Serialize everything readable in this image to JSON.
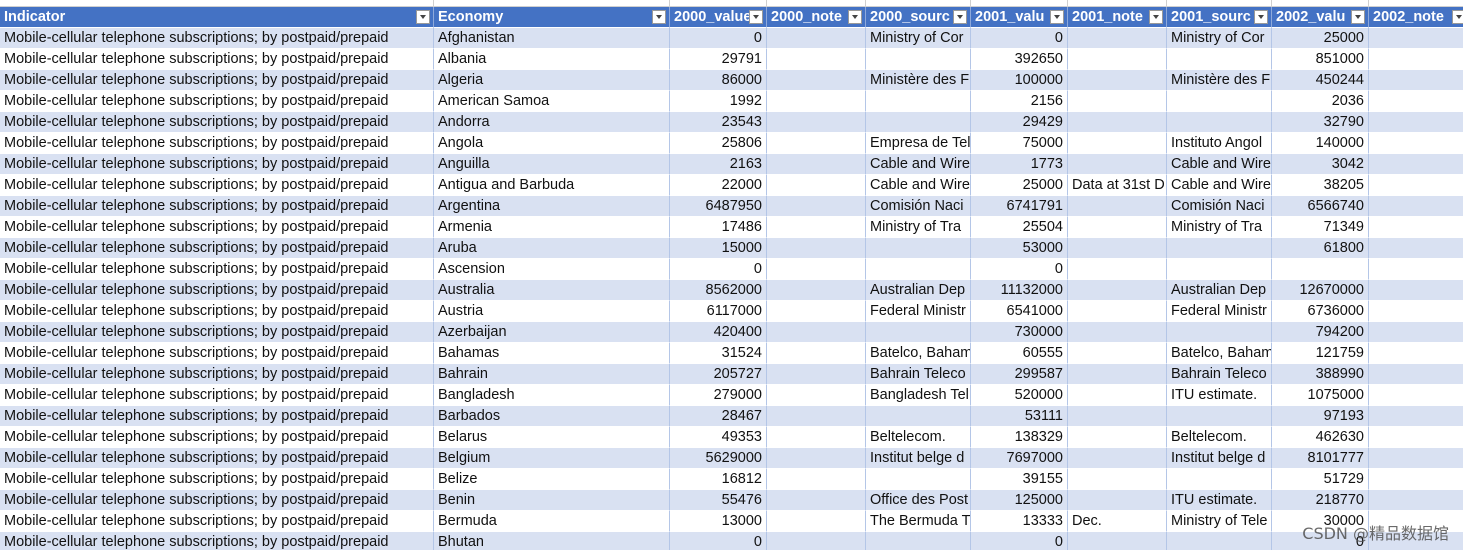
{
  "table": {
    "columns": [
      "Indicator",
      "Economy",
      "2000_value",
      "2000_note",
      "2000_sourc",
      "2001_valu",
      "2001_note",
      "2001_sourc",
      "2002_valu",
      "2002_note"
    ],
    "rows": [
      [
        "Mobile-cellular telephone subscriptions;  by postpaid/prepaid",
        "Afghanistan",
        0,
        null,
        "Ministry of Cor",
        0,
        null,
        "Ministry of Cor",
        25000,
        null
      ],
      [
        "Mobile-cellular telephone subscriptions;  by postpaid/prepaid",
        "Albania",
        29791,
        null,
        null,
        392650,
        null,
        null,
        851000,
        null
      ],
      [
        "Mobile-cellular telephone subscriptions;  by postpaid/prepaid",
        "Algeria",
        86000,
        null,
        "Ministère des F",
        100000,
        null,
        "Ministère des F",
        450244,
        null
      ],
      [
        "Mobile-cellular telephone subscriptions;  by postpaid/prepaid",
        "American Samoa",
        1992,
        null,
        null,
        2156,
        null,
        null,
        2036,
        null
      ],
      [
        "Mobile-cellular telephone subscriptions;  by postpaid/prepaid",
        "Andorra",
        23543,
        null,
        null,
        29429,
        null,
        null,
        32790,
        null
      ],
      [
        "Mobile-cellular telephone subscriptions;  by postpaid/prepaid",
        "Angola",
        25806,
        null,
        "Empresa de Tel",
        75000,
        null,
        "Instituto Angol",
        140000,
        null
      ],
      [
        "Mobile-cellular telephone subscriptions;  by postpaid/prepaid",
        "Anguilla",
        2163,
        null,
        "Cable and Wire",
        1773,
        null,
        "Cable and Wire",
        3042,
        null
      ],
      [
        "Mobile-cellular telephone subscriptions;  by postpaid/prepaid",
        "Antigua and Barbuda",
        22000,
        null,
        "Cable and Wire",
        25000,
        "Data at 31st D",
        "Cable and Wire",
        38205,
        null
      ],
      [
        "Mobile-cellular telephone subscriptions;  by postpaid/prepaid",
        "Argentina",
        6487950,
        null,
        "Comisión Naci",
        6741791,
        null,
        "Comisión Naci",
        6566740,
        null
      ],
      [
        "Mobile-cellular telephone subscriptions;  by postpaid/prepaid",
        "Armenia",
        17486,
        null,
        "Ministry of Tra",
        25504,
        null,
        "Ministry of Tra",
        71349,
        null
      ],
      [
        "Mobile-cellular telephone subscriptions;  by postpaid/prepaid",
        "Aruba",
        15000,
        null,
        null,
        53000,
        null,
        null,
        61800,
        null
      ],
      [
        "Mobile-cellular telephone subscriptions;  by postpaid/prepaid",
        "Ascension",
        0,
        null,
        null,
        0,
        null,
        null,
        null,
        null
      ],
      [
        "Mobile-cellular telephone subscriptions;  by postpaid/prepaid",
        "Australia",
        8562000,
        null,
        "Australian Dep",
        11132000,
        null,
        "Australian Dep",
        12670000,
        null
      ],
      [
        "Mobile-cellular telephone subscriptions;  by postpaid/prepaid",
        "Austria",
        6117000,
        null,
        "Federal Ministr",
        6541000,
        null,
        "Federal Ministr",
        6736000,
        null
      ],
      [
        "Mobile-cellular telephone subscriptions;  by postpaid/prepaid",
        "Azerbaijan",
        420400,
        null,
        null,
        730000,
        null,
        null,
        794200,
        null
      ],
      [
        "Mobile-cellular telephone subscriptions;  by postpaid/prepaid",
        "Bahamas",
        31524,
        null,
        "Batelco, Baham",
        60555,
        null,
        "Batelco, Baham",
        121759,
        null
      ],
      [
        "Mobile-cellular telephone subscriptions;  by postpaid/prepaid",
        "Bahrain",
        205727,
        null,
        "Bahrain Teleco",
        299587,
        null,
        "Bahrain Teleco",
        388990,
        null
      ],
      [
        "Mobile-cellular telephone subscriptions;  by postpaid/prepaid",
        "Bangladesh",
        279000,
        null,
        "Bangladesh Tel",
        520000,
        null,
        "ITU estimate.",
        1075000,
        null
      ],
      [
        "Mobile-cellular telephone subscriptions;  by postpaid/prepaid",
        "Barbados",
        28467,
        null,
        null,
        53111,
        null,
        null,
        97193,
        null
      ],
      [
        "Mobile-cellular telephone subscriptions;  by postpaid/prepaid",
        "Belarus",
        49353,
        null,
        "Beltelecom.",
        138329,
        null,
        "Beltelecom.",
        462630,
        null
      ],
      [
        "Mobile-cellular telephone subscriptions;  by postpaid/prepaid",
        "Belgium",
        5629000,
        null,
        "Institut belge d",
        7697000,
        null,
        "Institut belge d",
        8101777,
        null
      ],
      [
        "Mobile-cellular telephone subscriptions;  by postpaid/prepaid",
        "Belize",
        16812,
        null,
        null,
        39155,
        null,
        null,
        51729,
        null
      ],
      [
        "Mobile-cellular telephone subscriptions;  by postpaid/prepaid",
        "Benin",
        55476,
        null,
        "Office des Post",
        125000,
        null,
        "ITU estimate.",
        218770,
        null
      ],
      [
        "Mobile-cellular telephone subscriptions;  by postpaid/prepaid",
        "Bermuda",
        13000,
        null,
        "The Bermuda T",
        13333,
        "Dec.",
        "Ministry of Tele",
        30000,
        null
      ],
      [
        "Mobile-cellular telephone subscriptions;  by postpaid/prepaid",
        "Bhutan",
        0,
        null,
        null,
        0,
        null,
        null,
        0,
        null
      ]
    ]
  },
  "watermark": "CSDN @精品数据馆"
}
